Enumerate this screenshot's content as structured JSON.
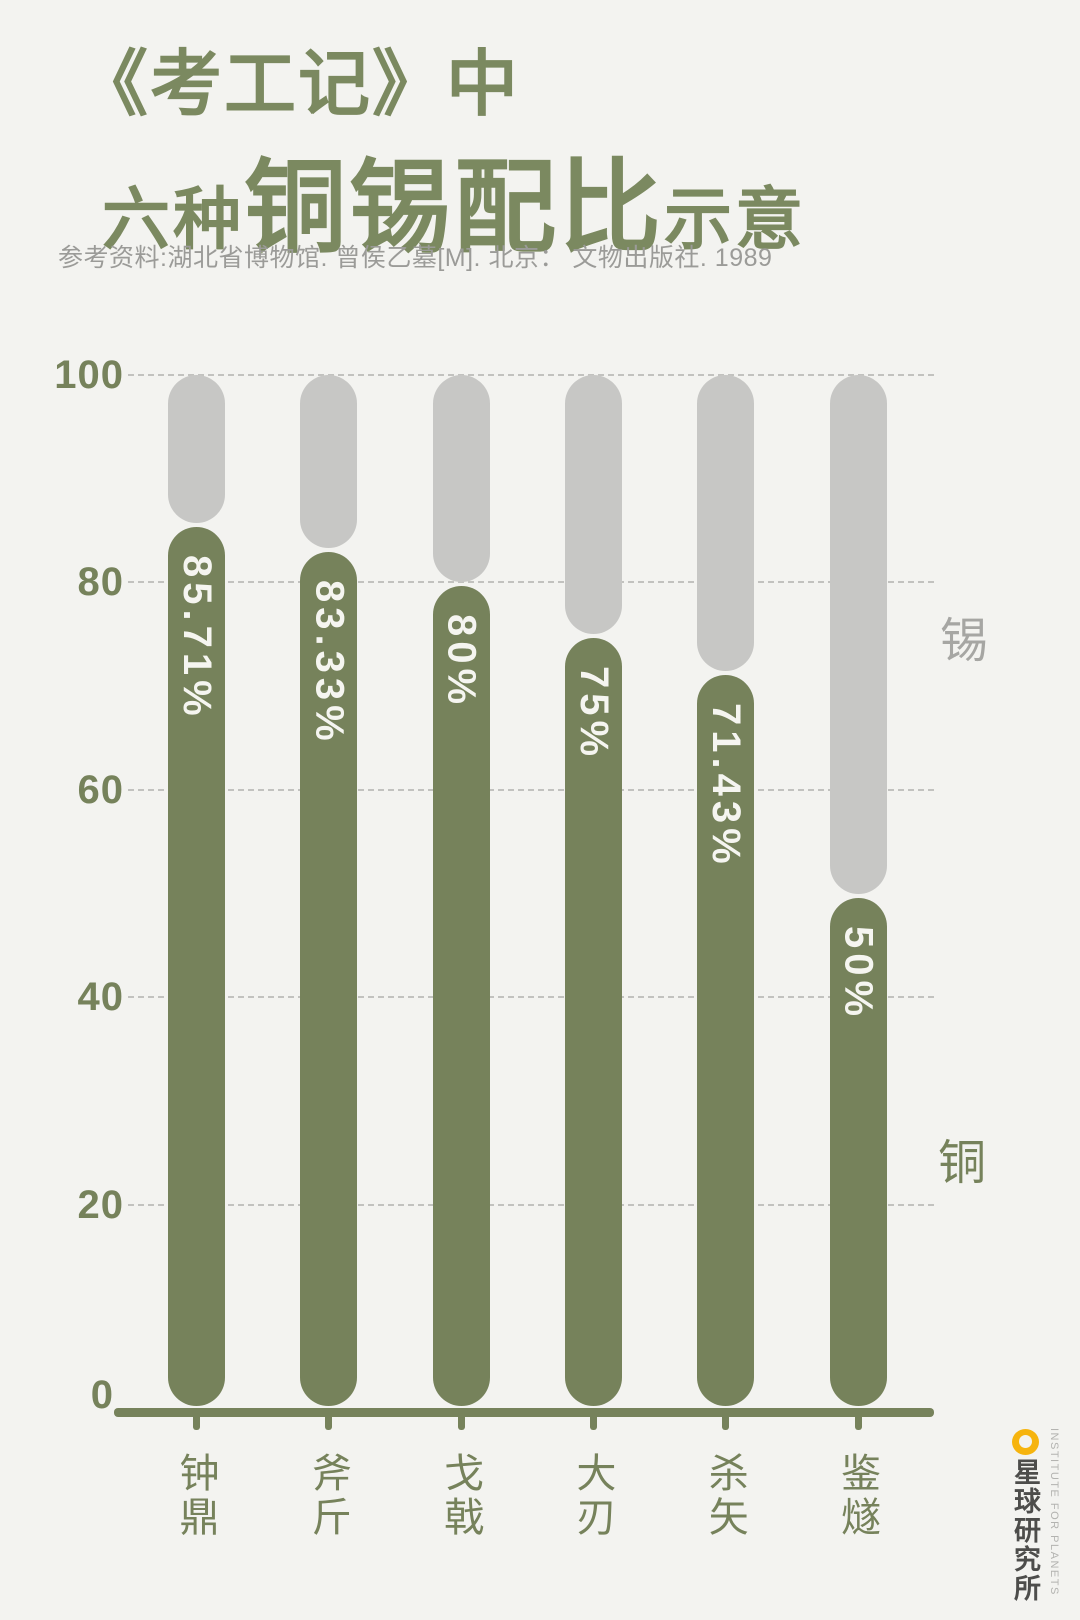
{
  "header": {
    "title_line1": "《考工记》中",
    "title_line2_prefix": "六种",
    "title_line2_main": "铜锡配比",
    "title_line2_suffix": "示意",
    "subtitle": "参考资料:湖北省博物馆. 曾侯乙墓[M]. 北京： 文物出版社. 1989"
  },
  "colors": {
    "green": "#76825B",
    "title_green": "#7B8960",
    "gray_bar": "#C7C7C5",
    "tin_label_gray": "#A6A6A3",
    "subtitle_gray": "#9B9B98",
    "value_text": "#F5F5F0",
    "gridline": "#C2C2BF",
    "logo_cn": "#4D4D4B",
    "logo_en": "#B3B3B0",
    "logo_yellow": "#F6B40E",
    "background": "#F3F3F0"
  },
  "chart_data": {
    "type": "bar",
    "stacked": true,
    "title": "《考工记》中六种铜锡配比示意",
    "categories": [
      "钟鼎",
      "斧斤",
      "戈戟",
      "大刃",
      "杀矢",
      "鉴燧"
    ],
    "series": [
      {
        "name": "铜",
        "color_key": "green",
        "values": [
          85.71,
          83.33,
          80,
          75,
          71.43,
          50
        ]
      },
      {
        "name": "锡",
        "color_key": "gray_bar",
        "values": [
          14.29,
          16.67,
          20,
          25,
          28.57,
          50
        ]
      }
    ],
    "value_labels": [
      "85.71%",
      "83.33%",
      "80%",
      "75%",
      "71.43%",
      "50%"
    ],
    "yticks": [
      0,
      20,
      40,
      60,
      80,
      100
    ],
    "ylim": [
      0,
      100
    ],
    "grid": "horizontal-dashed",
    "legend": {
      "tin": "锡",
      "copper": "铜"
    },
    "legend_position": "right"
  },
  "logo": {
    "cn": "星球研究所",
    "en": "INSTITUTE FOR PLANETS"
  }
}
